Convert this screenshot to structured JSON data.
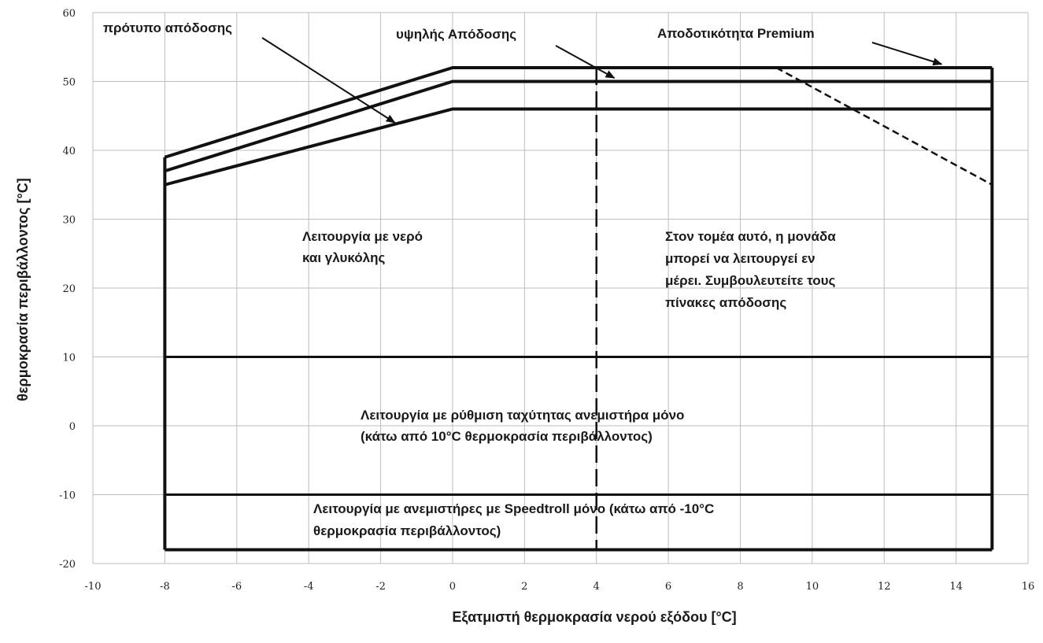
{
  "chart_data": {
    "type": "line",
    "title": "",
    "xlabel": "Εξατμιστή θερμοκρασία νερού εξόδου [°C]",
    "ylabel": "θερμοκρασία περιβάλλοντος [°C]",
    "xlim": [
      -10,
      16
    ],
    "ylim": [
      -20,
      60
    ],
    "x_ticks": [
      "-10",
      "-8",
      "-6",
      "-4",
      "-2",
      "0",
      "2",
      "4",
      "6",
      "8",
      "10",
      "12",
      "14",
      "16"
    ],
    "y_ticks": [
      "-20",
      "-10",
      "0",
      "10",
      "20",
      "30",
      "40",
      "50",
      "60"
    ],
    "grid": true,
    "series": [
      {
        "name": "πρότυπο απόδοσης",
        "x": [
          -8,
          0,
          15
        ],
        "y": [
          35,
          46,
          46
        ]
      },
      {
        "name": "υψηλής Απόδοσης",
        "x": [
          -8,
          0,
          15
        ],
        "y": [
          37,
          50,
          50
        ]
      },
      {
        "name": "Αποδοτικότητα Premium",
        "x": [
          -8,
          0,
          15
        ],
        "y": [
          39,
          52,
          52
        ]
      }
    ],
    "boundaries": {
      "left_edge_x": -8,
      "right_edge_x": 15,
      "bottom_y": -18,
      "horizontal_dividers_y": [
        10,
        -10
      ],
      "dashed_vertical_x": 4,
      "dashed_partial_load": {
        "x": [
          9,
          15
        ],
        "y": [
          52,
          35
        ]
      }
    },
    "annotations": {
      "standard_label": "πρότυπο απόδοσης",
      "high_label": "υψηλής Απόδοσης",
      "premium_label": "Αποδοτικότητα Premium",
      "water_glycol_line1": "Λειτουργία με νερό",
      "water_glycol_line2": "και γλυκόλης",
      "partial_line1": "Στον τομέα αυτό, η μονάδα",
      "partial_line2": "μπορεί να λειτουργεί εν",
      "partial_line3": "μέρει. Συμβουλευτείτε τους",
      "partial_line4": "πίνακες απόδοσης",
      "fan_speed_line1": "Λειτουργία με ρύθμιση ταχύτητας ανεμιστήρα μόνο",
      "fan_speed_line2": "(κάτω από 10°C θερμοκρασία περιβάλλοντος)",
      "speedtroll_line1": "Λειτουργία με ανεμιστήρες με Speedtroll μόνο (κάτω από -10°C",
      "speedtroll_line2": "θερμοκρασία περιβάλλοντος)"
    }
  }
}
